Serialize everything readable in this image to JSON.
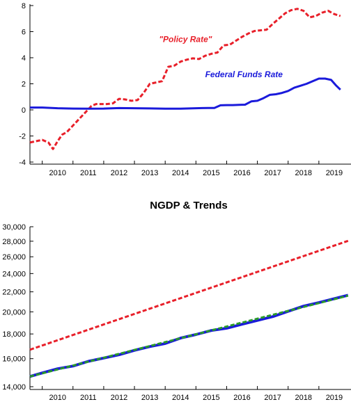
{
  "chart_data": [
    {
      "type": "line",
      "title": "",
      "xlabel": "",
      "ylabel": "",
      "x_tick_labels": [
        "2010",
        "2011",
        "2012",
        "2013",
        "2014",
        "2015",
        "2016",
        "2017",
        "2018",
        "2019"
      ],
      "y_tick_labels": [
        "8",
        "6",
        "4",
        "2",
        "0",
        "-2",
        "-4"
      ],
      "xlim": [
        2009.6,
        2020.0
      ],
      "ylim": [
        -4,
        8
      ],
      "grid": false,
      "annotations": [
        {
          "text": "\"Policy Rate\"",
          "x": 2013.8,
          "y": 5.2,
          "color": "#e8202a"
        },
        {
          "text": "Federal Funds Rate",
          "x": 2015.3,
          "y": 2.5,
          "color": "#1a1adb"
        }
      ],
      "series": [
        {
          "name": "\"Policy Rate\"",
          "color": "#e8202a",
          "style": "dashed",
          "x": [
            2009.6,
            2009.8,
            2010.0,
            2010.2,
            2010.35,
            2010.5,
            2010.65,
            2010.8,
            2011.0,
            2011.2,
            2011.4,
            2011.6,
            2011.75,
            2011.9,
            2012.1,
            2012.3,
            2012.5,
            2012.7,
            2012.9,
            2013.1,
            2013.3,
            2013.5,
            2013.7,
            2013.9,
            2014.1,
            2014.3,
            2014.5,
            2014.7,
            2014.9,
            2015.1,
            2015.3,
            2015.5,
            2015.7,
            2015.9,
            2016.1,
            2016.3,
            2016.5,
            2016.7,
            2016.9,
            2017.1,
            2017.3,
            2017.5,
            2017.7,
            2017.9,
            2018.1,
            2018.3,
            2018.5,
            2018.7,
            2018.9,
            2019.1,
            2019.3,
            2019.5,
            2019.7
          ],
          "values": [
            -2.5,
            -2.4,
            -2.3,
            -2.5,
            -3.0,
            -2.4,
            -1.9,
            -1.7,
            -1.2,
            -0.7,
            -0.2,
            0.3,
            0.45,
            0.45,
            0.45,
            0.5,
            0.85,
            0.8,
            0.7,
            0.75,
            1.3,
            2.0,
            2.1,
            2.2,
            3.3,
            3.4,
            3.7,
            3.85,
            3.95,
            3.9,
            4.15,
            4.3,
            4.4,
            4.95,
            5.0,
            5.3,
            5.6,
            5.85,
            6.05,
            6.1,
            6.15,
            6.6,
            7.0,
            7.4,
            7.65,
            7.75,
            7.6,
            7.1,
            7.2,
            7.45,
            7.6,
            7.35,
            7.2
          ]
        },
        {
          "name": "Federal Funds Rate",
          "color": "#1a1adb",
          "style": "solid",
          "x": [
            2009.6,
            2010.0,
            2010.5,
            2011.0,
            2011.5,
            2012.0,
            2012.5,
            2013.0,
            2013.5,
            2014.0,
            2014.5,
            2014.9,
            2015.0,
            2015.2,
            2015.4,
            2015.6,
            2015.8,
            2016.0,
            2016.2,
            2016.4,
            2016.6,
            2016.8,
            2017.0,
            2017.2,
            2017.4,
            2017.6,
            2017.8,
            2018.0,
            2018.2,
            2018.4,
            2018.6,
            2018.8,
            2019.0,
            2019.2,
            2019.4,
            2019.55,
            2019.7
          ],
          "values": [
            0.18,
            0.18,
            0.13,
            0.1,
            0.09,
            0.1,
            0.14,
            0.13,
            0.11,
            0.09,
            0.09,
            0.12,
            0.13,
            0.14,
            0.15,
            0.15,
            0.35,
            0.37,
            0.37,
            0.39,
            0.4,
            0.65,
            0.7,
            0.9,
            1.15,
            1.2,
            1.3,
            1.45,
            1.7,
            1.85,
            2.0,
            2.2,
            2.4,
            2.4,
            2.3,
            1.9,
            1.55
          ]
        }
      ]
    },
    {
      "type": "line",
      "title": "NGDP & Trends",
      "xlabel": "",
      "ylabel": "",
      "x_tick_labels": [
        "2010",
        "2011",
        "2012",
        "2013",
        "2014",
        "2015",
        "2016",
        "2017",
        "2018",
        "2019"
      ],
      "y_tick_labels": [
        "30,000",
        "28,000",
        "26,000",
        "24,000",
        "22,000",
        "20,000",
        "18,000",
        "16,000",
        "14,000"
      ],
      "y_tick_values": [
        30000,
        28000,
        26000,
        24000,
        22000,
        20000,
        18000,
        16000,
        14000
      ],
      "y_scale": "log",
      "xlim": [
        2009.6,
        2020.0
      ],
      "ylim": [
        14000,
        30000
      ],
      "grid": false,
      "series": [
        {
          "color": "#e8202a",
          "style": "dashed",
          "x": [
            2009.6,
            2019.95
          ],
          "values": [
            16700,
            28050
          ]
        },
        {
          "color": "#1a1adb",
          "style": "solid",
          "x": [
            2009.6,
            2010.0,
            2010.5,
            2011.0,
            2011.5,
            2012.0,
            2012.5,
            2013.0,
            2013.5,
            2014.0,
            2014.5,
            2015.0,
            2015.5,
            2016.0,
            2016.5,
            2017.0,
            2017.5,
            2018.0,
            2018.5,
            2019.0,
            2019.5,
            2019.95
          ],
          "values": [
            14700,
            14950,
            15250,
            15450,
            15800,
            16050,
            16300,
            16650,
            16950,
            17200,
            17650,
            17950,
            18300,
            18500,
            18850,
            19200,
            19550,
            20050,
            20550,
            20900,
            21300,
            21650
          ]
        },
        {
          "color": "#2a9a2a",
          "style": "dashed",
          "x": [
            2009.6,
            2019.95
          ],
          "values": [
            14700,
            21600
          ]
        }
      ]
    }
  ]
}
